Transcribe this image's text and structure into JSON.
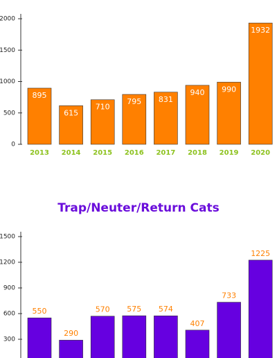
{
  "chart_data": [
    {
      "type": "bar",
      "categories": [
        "2013",
        "2014",
        "2015",
        "2016",
        "2017",
        "2018",
        "2019",
        "2020"
      ],
      "values": [
        895,
        615,
        710,
        795,
        831,
        940,
        990,
        1932
      ],
      "color": "#ff8000",
      "category_color": "#8dc21f",
      "value_label_color": "#ffffff",
      "value_label_position": "inside",
      "ylim": [
        0,
        2000
      ],
      "yticks": [
        0,
        500,
        1000,
        1500,
        2000
      ]
    },
    {
      "type": "bar",
      "title": "Trap/Neuter/Return Cats",
      "title_color": "#6a0ddb",
      "values": [
        550,
        290,
        570,
        575,
        574,
        407,
        733,
        1225
      ],
      "color": "#6600e0",
      "value_label_color": "#ff8000",
      "value_label_position": "above",
      "ylim": [
        0,
        1500
      ],
      "yticks": [
        300,
        600,
        900,
        1200,
        1500
      ]
    }
  ]
}
